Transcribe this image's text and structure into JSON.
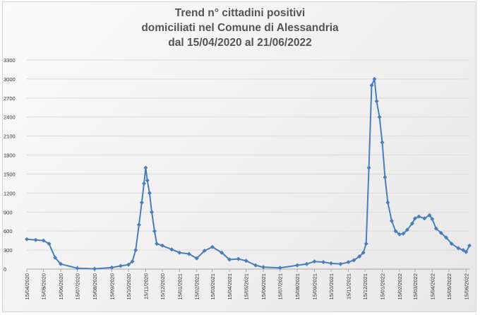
{
  "chart_data": {
    "type": "line",
    "title_lines": [
      "Trend n° cittadini positivi",
      "domiciliati nel Comune di Alessandria",
      "dal 15/04/2020 al 21/06/2022"
    ],
    "xlabel": "",
    "ylabel": "",
    "ylim": [
      0,
      3300
    ],
    "yticks": [
      "0",
      "300",
      "600",
      "900",
      "1200",
      "1500",
      "1800",
      "2100",
      "2400",
      "2700",
      "3000",
      "3300"
    ],
    "xticks": [
      "15/04/2020",
      "15/05/2020",
      "15/06/2020",
      "15/07/2020",
      "15/08/2020",
      "15/09/2020",
      "15/10/2020",
      "15/11/2020",
      "15/12/2020",
      "15/01/2021",
      "15/02/2021",
      "15/03/2021",
      "15/04/2021",
      "15/05/2021",
      "15/06/2021",
      "15/07/2021",
      "15/08/2021",
      "15/09/2021",
      "15/10/2021",
      "15/11/2021",
      "15/12/2021",
      "15/01/2022",
      "15/02/2022",
      "15/03/2022",
      "15/04/2022",
      "15/05/2022",
      "15/06/2022"
    ],
    "grid": true,
    "legend": "none",
    "color": "#4a7ebb",
    "x_start": "15/04/2020",
    "x_end": "21/06/2022",
    "series": [
      {
        "x": [
          "15/04/2020",
          "01/05/2020",
          "15/05/2020",
          "25/05/2020",
          "05/06/2020",
          "15/06/2020",
          "15/07/2020",
          "15/08/2020",
          "15/09/2020",
          "01/10/2020",
          "15/10/2020",
          "22/10/2020",
          "28/10/2020",
          "03/11/2020",
          "08/11/2020",
          "12/11/2020",
          "15/11/2020",
          "18/11/2020",
          "22/11/2020",
          "26/11/2020",
          "01/12/2020",
          "05/12/2020",
          "15/12/2020",
          "01/01/2021",
          "15/01/2021",
          "01/02/2021",
          "15/02/2021",
          "01/03/2021",
          "15/03/2021",
          "01/04/2021",
          "15/04/2021",
          "01/05/2021",
          "15/05/2021",
          "01/06/2021",
          "15/06/2021",
          "15/07/2021",
          "15/08/2021",
          "01/09/2021",
          "15/09/2021",
          "01/10/2021",
          "15/10/2021",
          "01/11/2021",
          "15/11/2021",
          "25/11/2021",
          "05/12/2021",
          "12/12/2021",
          "17/12/2021",
          "22/12/2021",
          "27/12/2021",
          "01/01/2022",
          "05/01/2022",
          "10/01/2022",
          "15/01/2022",
          "20/01/2022",
          "25/01/2022",
          "01/02/2022",
          "08/02/2022",
          "15/02/2022",
          "22/02/2022",
          "01/03/2022",
          "10/03/2022",
          "15/03/2022",
          "22/03/2022",
          "01/04/2022",
          "10/04/2022",
          "15/04/2022",
          "22/04/2022",
          "01/05/2022",
          "10/05/2022",
          "20/05/2022",
          "01/06/2022",
          "10/06/2022",
          "15/06/2022",
          "21/06/2022"
        ],
        "values": [
          470,
          460,
          450,
          400,
          180,
          80,
          15,
          5,
          25,
          50,
          70,
          120,
          300,
          700,
          1050,
          1350,
          1600,
          1400,
          1200,
          900,
          600,
          400,
          370,
          310,
          260,
          240,
          170,
          290,
          350,
          260,
          150,
          160,
          130,
          60,
          30,
          20,
          60,
          80,
          120,
          110,
          90,
          80,
          110,
          140,
          200,
          260,
          400,
          1600,
          2900,
          3000,
          2650,
          2400,
          2000,
          1450,
          1050,
          760,
          600,
          550,
          560,
          620,
          720,
          800,
          830,
          800,
          850,
          790,
          640,
          570,
          500,
          400,
          330,
          300,
          270,
          370
        ]
      }
    ]
  }
}
